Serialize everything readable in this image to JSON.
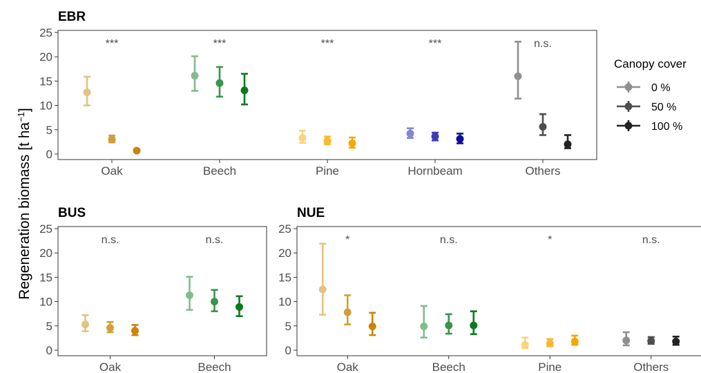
{
  "chart_data": [
    {
      "type": "scatter",
      "title": "EBR",
      "categories": [
        "Oak",
        "Beech",
        "Pine",
        "Hornbeam",
        "Others"
      ],
      "significance": [
        "***",
        "***",
        "***",
        "***",
        "n.s."
      ],
      "ylim": [
        0,
        25
      ],
      "yticks": [
        0,
        5,
        10,
        15,
        20,
        25
      ],
      "series": [
        {
          "name": "0 %",
          "values": [
            12.7,
            16.1,
            3.3,
            4.2,
            16.0
          ],
          "lower": [
            10.0,
            13.0,
            2.3,
            3.3,
            11.4
          ],
          "upper": [
            15.9,
            20.1,
            4.8,
            5.3,
            23.1
          ]
        },
        {
          "name": "50 %",
          "values": [
            3.0,
            14.6,
            2.7,
            3.6,
            5.6
          ],
          "lower": [
            2.4,
            11.8,
            2.0,
            2.8,
            3.9
          ],
          "upper": [
            3.8,
            17.9,
            3.6,
            4.4,
            8.2
          ]
        },
        {
          "name": "100 %",
          "values": [
            0.7,
            13.1,
            2.2,
            3.1,
            2.0
          ],
          "lower": [
            0.5,
            10.2,
            1.3,
            2.2,
            1.2
          ],
          "upper": [
            0.9,
            16.5,
            3.4,
            4.2,
            3.9
          ]
        }
      ]
    },
    {
      "type": "scatter",
      "title": "BUS",
      "categories": [
        "Oak",
        "Beech"
      ],
      "significance": [
        "n.s.",
        "n.s."
      ],
      "ylim": [
        0,
        25
      ],
      "yticks": [
        0,
        5,
        10,
        15,
        20,
        25
      ],
      "series": [
        {
          "name": "0 %",
          "values": [
            5.3,
            11.3
          ],
          "lower": [
            3.9,
            8.3
          ],
          "upper": [
            7.2,
            15.1
          ]
        },
        {
          "name": "50 %",
          "values": [
            4.6,
            10.0
          ],
          "lower": [
            3.7,
            8.0
          ],
          "upper": [
            5.8,
            12.4
          ]
        },
        {
          "name": "100 %",
          "values": [
            4.0,
            8.9
          ],
          "lower": [
            3.1,
            7.0
          ],
          "upper": [
            5.2,
            11.1
          ]
        }
      ]
    },
    {
      "type": "scatter",
      "title": "NUE",
      "categories": [
        "Oak",
        "Beech",
        "Pine",
        "Others"
      ],
      "significance": [
        "*",
        "n.s.",
        "*",
        "n.s."
      ],
      "ylim": [
        0,
        25
      ],
      "yticks": [
        0,
        5,
        10,
        15,
        20,
        25
      ],
      "series": [
        {
          "name": "0 %",
          "values": [
            12.5,
            4.9,
            1.1,
            2.0
          ],
          "lower": [
            7.3,
            2.6,
            0.4,
            1.0
          ],
          "upper": [
            21.9,
            9.1,
            2.6,
            3.7
          ]
        },
        {
          "name": "50 %",
          "values": [
            7.8,
            5.1,
            1.4,
            1.9
          ],
          "lower": [
            5.3,
            3.4,
            0.8,
            1.3
          ],
          "upper": [
            11.3,
            7.4,
            2.3,
            2.7
          ]
        },
        {
          "name": "100 %",
          "values": [
            4.9,
            5.1,
            1.8,
            1.8
          ],
          "lower": [
            3.1,
            3.3,
            1.1,
            1.1
          ],
          "upper": [
            7.7,
            8.0,
            3.0,
            2.8
          ]
        }
      ]
    }
  ],
  "ylabel_main": "Regeneration biomass [t ha",
  "ylabel_sup": "−1",
  "ylabel_close": "]",
  "legend": {
    "title": "Canopy cover",
    "items": [
      "0 %",
      "50 %",
      "100 %"
    ],
    "position": "right"
  },
  "species_colors": {
    "Oak": "#c8860a",
    "Beech": "#0a7a1e",
    "Pine": "#f5a800",
    "Hornbeam": "#0d0d9e",
    "Others": "#222222"
  },
  "series_opacity": [
    0.5,
    0.8,
    1.0
  ]
}
